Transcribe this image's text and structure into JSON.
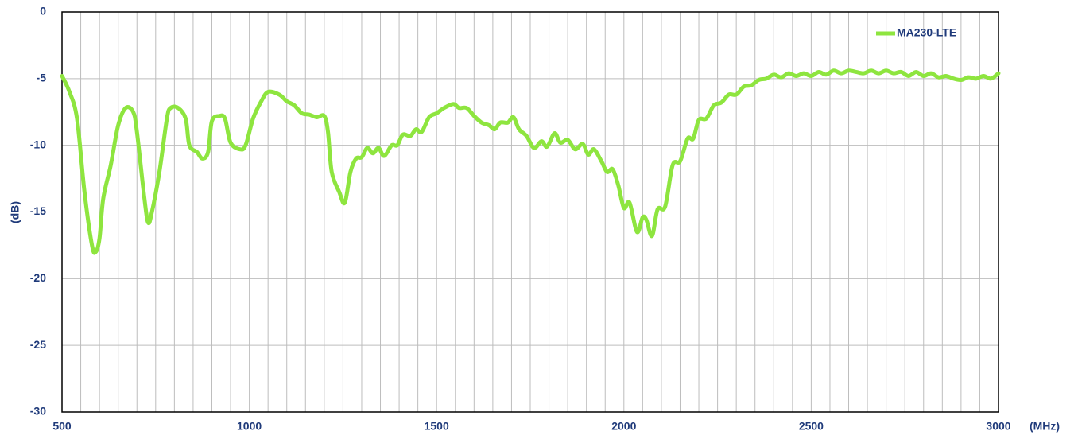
{
  "chart_data": {
    "type": "line",
    "y_label": "(dB)",
    "x_label": "(MHz)",
    "xlim": [
      500,
      3000
    ],
    "ylim": [
      -30,
      0
    ],
    "xticks": [
      500,
      1000,
      1500,
      2000,
      2500,
      3000
    ],
    "yticks": [
      0,
      -5,
      -10,
      -15,
      -20,
      -25,
      -30
    ],
    "xgrid": [
      500,
      550,
      600,
      650,
      700,
      750,
      800,
      850,
      900,
      950,
      1000,
      1050,
      1100,
      1150,
      1200,
      1250,
      1300,
      1350,
      1400,
      1450,
      1500,
      1550,
      1600,
      1650,
      1700,
      1750,
      1800,
      1850,
      1900,
      1950,
      2000,
      2050,
      2100,
      2150,
      2200,
      2250,
      2300,
      2350,
      2400,
      2450,
      2500,
      2550,
      2600,
      2650,
      2700,
      2750,
      2800,
      2850,
      2900,
      2950,
      3000
    ],
    "grid": true,
    "legend": "top-right",
    "x": [
      500,
      520,
      540,
      560,
      580,
      590,
      600,
      610,
      630,
      650,
      670,
      690,
      700,
      720,
      730,
      740,
      760,
      780,
      790,
      810,
      830,
      840,
      860,
      875,
      890,
      900,
      920,
      935,
      950,
      975,
      990,
      1010,
      1030,
      1050,
      1080,
      1100,
      1120,
      1140,
      1160,
      1180,
      1200,
      1210,
      1220,
      1240,
      1255,
      1270,
      1285,
      1300,
      1315,
      1330,
      1345,
      1360,
      1380,
      1395,
      1410,
      1430,
      1445,
      1460,
      1480,
      1500,
      1520,
      1545,
      1560,
      1580,
      1600,
      1620,
      1640,
      1655,
      1670,
      1690,
      1705,
      1720,
      1740,
      1760,
      1780,
      1795,
      1815,
      1830,
      1850,
      1870,
      1890,
      1905,
      1920,
      1940,
      1955,
      1970,
      1985,
      2000,
      2015,
      2035,
      2050,
      2060,
      2075,
      2090,
      2110,
      2130,
      2150,
      2170,
      2185,
      2200,
      2220,
      2240,
      2260,
      2280,
      2300,
      2320,
      2340,
      2360,
      2380,
      2400,
      2420,
      2440,
      2460,
      2480,
      2500,
      2520,
      2540,
      2560,
      2580,
      2600,
      2620,
      2640,
      2660,
      2680,
      2700,
      2720,
      2740,
      2760,
      2780,
      2800,
      2820,
      2840,
      2860,
      2880,
      2900,
      2920,
      2940,
      2960,
      2980,
      3000
    ],
    "series": [
      {
        "name": "MA230-LTE",
        "color": "#8ee53f",
        "values": [
          -4.8,
          -6,
          -8,
          -13.5,
          -17.5,
          -18,
          -17,
          -14,
          -11.5,
          -8.5,
          -7.2,
          -7.5,
          -9,
          -14,
          -15.8,
          -15,
          -12,
          -8,
          -7.2,
          -7.2,
          -8,
          -10,
          -10.5,
          -11,
          -10.5,
          -8.2,
          -7.8,
          -8,
          -9.8,
          -10.3,
          -10,
          -8,
          -6.8,
          -6,
          -6.2,
          -6.7,
          -7,
          -7.6,
          -7.7,
          -7.9,
          -7.8,
          -9,
          -12,
          -13.5,
          -14.3,
          -12,
          -11,
          -10.9,
          -10.2,
          -10.6,
          -10.2,
          -10.8,
          -10,
          -10,
          -9.2,
          -9.3,
          -8.8,
          -9,
          -7.9,
          -7.6,
          -7.2,
          -6.9,
          -7.2,
          -7.2,
          -7.8,
          -8.3,
          -8.5,
          -8.8,
          -8.3,
          -8.3,
          -7.9,
          -8.8,
          -9.3,
          -10.2,
          -9.7,
          -10.1,
          -9.1,
          -9.8,
          -9.6,
          -10.3,
          -9.9,
          -10.7,
          -10.3,
          -11.2,
          -12,
          -11.8,
          -13,
          -14.7,
          -14.3,
          -16.5,
          -15.4,
          -15.6,
          -16.8,
          -14.8,
          -14.6,
          -11.5,
          -11.2,
          -9.5,
          -9.5,
          -8.1,
          -8,
          -7,
          -6.8,
          -6.2,
          -6.2,
          -5.6,
          -5.5,
          -5.1,
          -5,
          -4.7,
          -4.9,
          -4.6,
          -4.8,
          -4.6,
          -4.8,
          -4.5,
          -4.7,
          -4.4,
          -4.6,
          -4.4,
          -4.5,
          -4.6,
          -4.4,
          -4.6,
          -4.4,
          -4.6,
          -4.5,
          -4.8,
          -4.5,
          -4.8,
          -4.6,
          -4.9,
          -4.8,
          -5,
          -5.1,
          -4.9,
          -5,
          -4.8,
          -5,
          -4.6
        ]
      }
    ]
  }
}
